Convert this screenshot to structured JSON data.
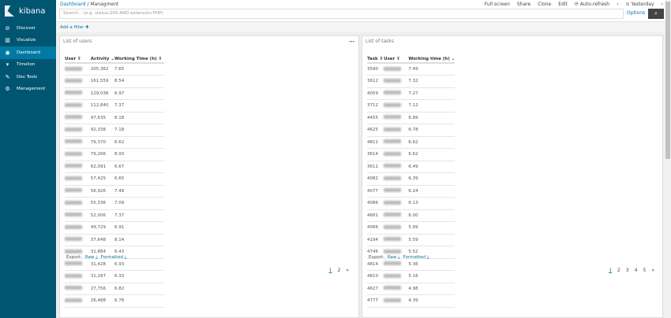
{
  "brand": "kibana",
  "sidebar": {
    "items": [
      {
        "label": "Discover",
        "icon": "compass-icon",
        "g": "⊘"
      },
      {
        "label": "Visualize",
        "icon": "bar-chart-icon",
        "g": "▥"
      },
      {
        "label": "Dashboard",
        "icon": "dashboard-icon",
        "g": "◉"
      },
      {
        "label": "Timelion",
        "icon": "timelion-icon",
        "g": "▾"
      },
      {
        "label": "Dev Tools",
        "icon": "wrench-icon",
        "g": "✎"
      },
      {
        "label": "Management",
        "icon": "gear-icon",
        "g": "⚙"
      }
    ],
    "active": "Dashboard"
  },
  "breadcrumb": {
    "parent": "Dashboard",
    "sep": "/",
    "current": "Managment"
  },
  "menu": [
    "Full screen",
    "Share",
    "Clone",
    "Edit",
    "⟳ Auto-refresh",
    "‹",
    "⊙ Yesterday",
    "›"
  ],
  "search": {
    "placeholder": "Search... (e.g. status:200 AND extension:PHP)",
    "options": "Options"
  },
  "filter": {
    "add": "Add a filter ✚"
  },
  "users_panel": {
    "title": "List of users",
    "headers": [
      "User ⇕",
      "Activity ⌄",
      "Working Time (h) ⇕"
    ],
    "rows": [
      [
        "205,362",
        "7.65"
      ],
      [
        "161,559",
        "8.54"
      ],
      [
        "129,036",
        "6.97"
      ],
      [
        "112,840",
        "7.37"
      ],
      [
        "97,635",
        "8.18"
      ],
      [
        "92,338",
        "7.18"
      ],
      [
        "79,370",
        "6.62"
      ],
      [
        "79,206",
        "8.93"
      ],
      [
        "62,091",
        "6.67"
      ],
      [
        "57,425",
        "6.65"
      ],
      [
        "56,926",
        "7.49"
      ],
      [
        "55,336",
        "7.09"
      ],
      [
        "52,006",
        "7.37"
      ],
      [
        "49,729",
        "6.91"
      ],
      [
        "37,648",
        "8.14"
      ],
      [
        "31,884",
        "6.43"
      ],
      [
        "31,428",
        "6.93"
      ],
      [
        "31,287",
        "6.33"
      ],
      [
        "27,756",
        "6.82"
      ],
      [
        "26,488",
        "6.78"
      ]
    ],
    "export": "Export:",
    "raw": "Raw ⤓",
    "formatted": "Formatted ⤓",
    "pages": [
      "1",
      "2",
      "»"
    ]
  },
  "tasks_panel": {
    "title": "List of tasks",
    "headers": [
      "Task ⇕",
      "User ⇕",
      "Working time (h) ⌄"
    ],
    "rows": [
      [
        "3590",
        "7.49"
      ],
      [
        "3612",
        "7.32"
      ],
      [
        "4059",
        "7.27"
      ],
      [
        "3712",
        "7.12"
      ],
      [
        "4455",
        "6.89"
      ],
      [
        "4625",
        "6.78"
      ],
      [
        "4811",
        "6.62"
      ],
      [
        "3614",
        "6.62"
      ],
      [
        "3611",
        "6.49"
      ],
      [
        "4082",
        "6.39"
      ],
      [
        "4077",
        "6.24"
      ],
      [
        "4086",
        "6.13"
      ],
      [
        "4681",
        "6.00"
      ],
      [
        "4066",
        "5.99"
      ],
      [
        "4194",
        "5.59"
      ],
      [
        "4746",
        "5.52"
      ],
      [
        "4814",
        "5.36"
      ],
      [
        "4810",
        "5.16"
      ],
      [
        "4627",
        "4.98"
      ],
      [
        "4777",
        "4.39"
      ]
    ],
    "export": "Export:",
    "raw": "Raw ⤓",
    "formatted": "Formatted ⤓",
    "pages": [
      "1",
      "2",
      "3",
      "4",
      "5",
      "»"
    ]
  }
}
